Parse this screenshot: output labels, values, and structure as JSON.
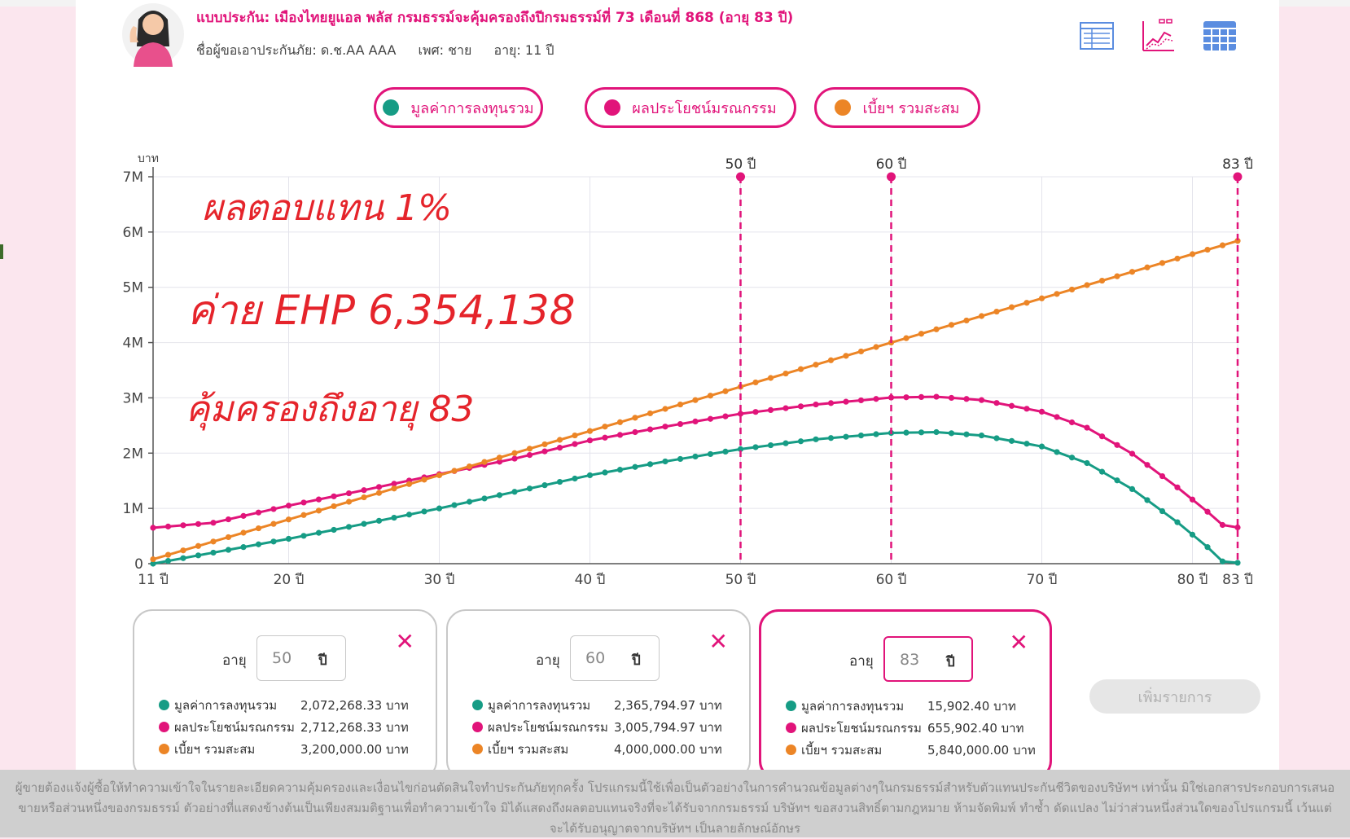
{
  "header": {
    "plan_title": "แบบประกัน: เมืองไทยยูแอล พลัส    กรมธรรม์จะคุ้มครองถึงปีกรมธรรม์ที่ 73 เดือนที่ 868 (อายุ 83 ปี)",
    "applicant_name": "ชื่อผู้ขอเอาประกันภัย: ด.ช.AA AAA",
    "applicant_sex": "เพศ: ชาย",
    "applicant_age": "อายุ: 11 ปี"
  },
  "view_icons": [
    "table-view-icon",
    "chart-view-icon",
    "grid-view-icon"
  ],
  "legend": [
    {
      "label": "มูลค่าการลงทุนรวม",
      "color": "#169c85"
    },
    {
      "label": "ผลประโยชน์มรณกรรม",
      "color": "#e1147a"
    },
    {
      "label": "เบี้ยฯ รวมสะสม",
      "color": "#ec8526"
    }
  ],
  "chart_data": {
    "type": "line",
    "ylabel": "บาท",
    "ylim": [
      0,
      7000000
    ],
    "yticks": [
      0,
      1000000,
      2000000,
      3000000,
      4000000,
      5000000,
      6000000,
      7000000
    ],
    "ytick_labels": [
      "0",
      "1M",
      "2M",
      "3M",
      "4M",
      "5M",
      "6M",
      "7M"
    ],
    "xlim": [
      11,
      83
    ],
    "xticks": [
      11,
      20,
      30,
      40,
      50,
      60,
      70,
      80,
      83
    ],
    "xtick_labels": [
      "11 ปี",
      "20 ปี",
      "30 ปี",
      "40 ปี",
      "50 ปี",
      "60 ปี",
      "70 ปี",
      "80 ปี",
      "83 ปี"
    ],
    "markers": [
      {
        "age": 50,
        "label": "50 ปี"
      },
      {
        "age": 60,
        "label": "60 ปี"
      },
      {
        "age": 83,
        "label": "83 ปี"
      }
    ],
    "grid": true,
    "series": [
      {
        "name": "มูลค่าการลงทุนรวม",
        "color": "#169c85",
        "points": [
          [
            11,
            0
          ],
          [
            15,
            200000
          ],
          [
            20,
            450000
          ],
          [
            25,
            720000
          ],
          [
            30,
            1000000
          ],
          [
            35,
            1300000
          ],
          [
            40,
            1600000
          ],
          [
            45,
            1850000
          ],
          [
            50,
            2072268
          ],
          [
            55,
            2250000
          ],
          [
            60,
            2365795
          ],
          [
            63,
            2380000
          ],
          [
            66,
            2320000
          ],
          [
            70,
            2120000
          ],
          [
            73,
            1820000
          ],
          [
            76,
            1350000
          ],
          [
            79,
            750000
          ],
          [
            81,
            300000
          ],
          [
            82,
            40000
          ],
          [
            83,
            15902
          ]
        ]
      },
      {
        "name": "ผลประโยชน์มรณกรรม",
        "color": "#e1147a",
        "points": [
          [
            11,
            650000
          ],
          [
            15,
            740000
          ],
          [
            20,
            1050000
          ],
          [
            25,
            1330000
          ],
          [
            30,
            1620000
          ],
          [
            35,
            1900000
          ],
          [
            40,
            2230000
          ],
          [
            45,
            2480000
          ],
          [
            50,
            2712268
          ],
          [
            55,
            2880000
          ],
          [
            60,
            3005795
          ],
          [
            63,
            3020000
          ],
          [
            66,
            2960000
          ],
          [
            70,
            2750000
          ],
          [
            73,
            2460000
          ],
          [
            76,
            1990000
          ],
          [
            79,
            1380000
          ],
          [
            81,
            940000
          ],
          [
            82,
            700000
          ],
          [
            83,
            655902
          ]
        ]
      },
      {
        "name": "เบี้ยฯ รวมสะสม",
        "color": "#ec8526",
        "points": [
          [
            11,
            80000
          ],
          [
            83,
            5840000
          ]
        ]
      }
    ]
  },
  "handwriting": {
    "line1": "ผลตอบแทน  1%",
    "line2": "ค่าย EHP  6,354,138",
    "line3": "คุ้มครองถึงอายุ  83"
  },
  "cards": [
    {
      "age_label": "อายุ",
      "age": "50",
      "unit": "ปี",
      "rows": [
        {
          "label": "มูลค่าการลงทุนรวม",
          "value": "2,072,268.33 บาท",
          "color": "#169c85"
        },
        {
          "label": "ผลประโยชน์มรณกรรม",
          "value": "2,712,268.33 บาท",
          "color": "#e1147a"
        },
        {
          "label": "เบี้ยฯ รวมสะสม",
          "value": "3,200,000.00 บาท",
          "color": "#ec8526"
        }
      ]
    },
    {
      "age_label": "อายุ",
      "age": "60",
      "unit": "ปี",
      "rows": [
        {
          "label": "มูลค่าการลงทุนรวม",
          "value": "2,365,794.97 บาท",
          "color": "#169c85"
        },
        {
          "label": "ผลประโยชน์มรณกรรม",
          "value": "3,005,794.97 บาท",
          "color": "#e1147a"
        },
        {
          "label": "เบี้ยฯ รวมสะสม",
          "value": "4,000,000.00 บาท",
          "color": "#ec8526"
        }
      ]
    },
    {
      "age_label": "อายุ",
      "age": "83",
      "unit": "ปี",
      "rows": [
        {
          "label": "มูลค่าการลงทุนรวม",
          "value": "15,902.40 บาท",
          "color": "#169c85"
        },
        {
          "label": "ผลประโยชน์มรณกรรม",
          "value": "655,902.40 บาท",
          "color": "#e1147a"
        },
        {
          "label": "เบี้ยฯ รวมสะสม",
          "value": "5,840,000.00 บาท",
          "color": "#ec8526"
        }
      ]
    }
  ],
  "close_glyph": "✕",
  "add_button": "เพิ่มรายการ",
  "disclaimer": "ผู้ขายต้องแจ้งผู้ซื้อให้ทำความเข้าใจในรายละเอียดความคุ้มครองและเงื่อนไขก่อนตัดสินใจทำประกันภัยทุกครั้ง โปรแกรมนี้ใช้เพื่อเป็นตัวอย่างในการคำนวณข้อมูลต่างๆในกรมธรรม์สำหรับตัวแทนประกันชีวิตของบริษัทฯ เท่านั้น มิใช่เอกสารประกอบการเสนอขายหรือส่วนหนึ่งของกรมธรรม์ ตัวอย่างที่แสดงข้างต้นเป็นเพียงสมมติฐานเพื่อทำความเข้าใจ มิได้แสดงถึงผลตอบแทนจริงที่จะได้รับจากกรมธรรม์ บริษัทฯ ขอสงวนสิทธิ์ตามกฎหมาย ห้ามจัดพิมพ์ ทำซ้ำ ดัดแปลง ไม่ว่าส่วนหนึ่งส่วนใดของโปรแกรมนี้ เว้นแต่จะได้รับอนุญาตจากบริษัทฯ เป็นลายลักษณ์อักษร"
}
